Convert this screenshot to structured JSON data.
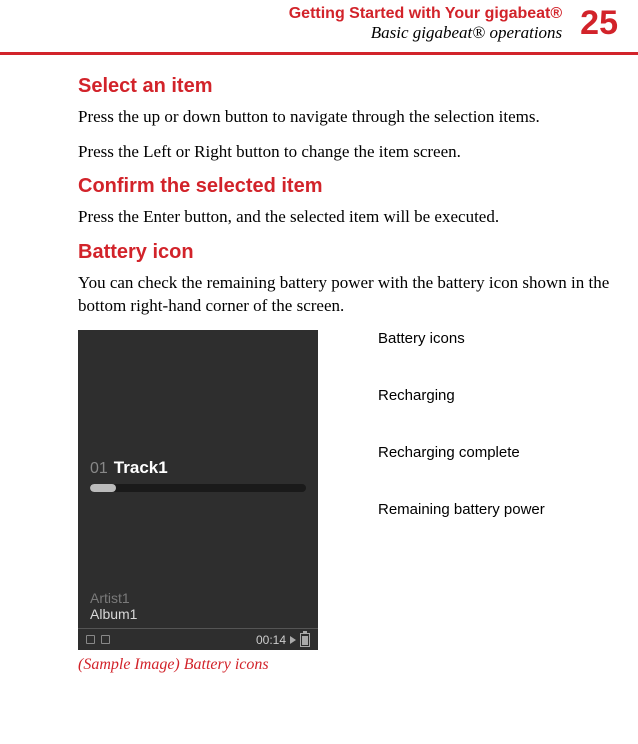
{
  "header": {
    "chapter": "Getting Started with Your gigabeat®",
    "section": "Basic gigabeat® operations",
    "page_number": "25",
    "accent_color": "#d2232a"
  },
  "sections": {
    "select_item": {
      "heading": "Select an item",
      "p1": "Press the up or down button to navigate through the selection items.",
      "p2": "Press the Left or Right button to change the item screen."
    },
    "confirm": {
      "heading": "Confirm the selected item",
      "p1": "Press the Enter button, and the selected item will be executed."
    },
    "battery": {
      "heading": "Battery icon",
      "p1": "You can check the remaining battery power with the battery icon shown in the bottom right-hand corner of the screen."
    }
  },
  "device_screen": {
    "background_color": "#2e2e2e",
    "track_number": "01",
    "track_name": "Track1",
    "progress_pct": 12,
    "artist": "Artist1",
    "album": "Album1",
    "time": "00:14",
    "play_triangle": "▶",
    "battery_pct": 70
  },
  "side_labels": {
    "l0": "Battery icons",
    "l1": "Recharging",
    "l2": "Recharging complete",
    "l3": "Remaining battery power"
  },
  "caption": "(Sample Image) Battery icons"
}
